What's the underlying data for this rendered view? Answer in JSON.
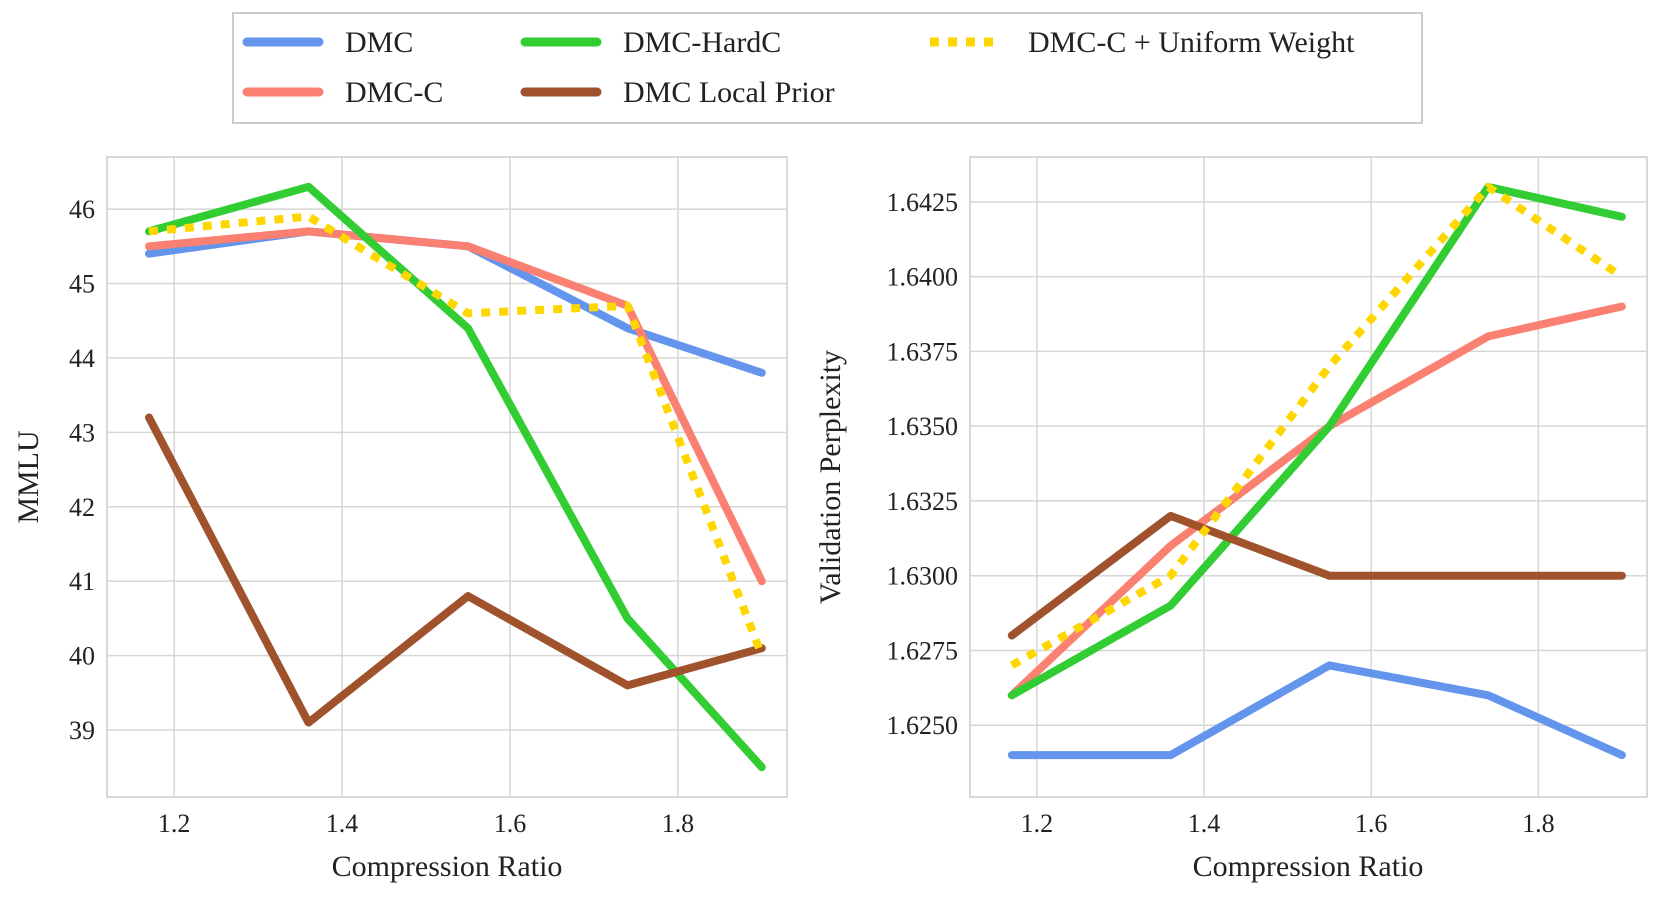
{
  "legend": {
    "placement": "top-center",
    "entries": [
      {
        "name": "DMC",
        "color": "#6495ED",
        "style": "solid"
      },
      {
        "name": "DMC-HardC",
        "color": "#32CD32",
        "style": "solid"
      },
      {
        "name": "DMC-C + Uniform Weight",
        "color": "#FFD700",
        "style": "dotted"
      },
      {
        "name": "DMC-C",
        "color": "#FA8072",
        "style": "solid"
      },
      {
        "name": "DMC Local Prior",
        "color": "#A0522D",
        "style": "solid"
      }
    ]
  },
  "chart_data": [
    {
      "type": "line",
      "xlabel": "Compression Ratio",
      "ylabel": "MMLU",
      "xlim": [
        1.12,
        1.93
      ],
      "ylim": [
        38.1,
        46.7
      ],
      "xticks": [
        "1.2",
        "1.4",
        "1.6",
        "1.8"
      ],
      "yticks": [
        "39",
        "40",
        "41",
        "42",
        "43",
        "44",
        "45",
        "46"
      ],
      "grid": true,
      "x": [
        1.17,
        1.36,
        1.55,
        1.74,
        1.9
      ],
      "series": [
        {
          "name": "DMC",
          "color": "#6495ED",
          "style": "solid",
          "values": [
            45.4,
            45.7,
            45.5,
            44.4,
            43.8
          ]
        },
        {
          "name": "DMC-C",
          "color": "#FA8072",
          "style": "solid",
          "values": [
            45.5,
            45.7,
            45.5,
            44.7,
            41.0
          ]
        },
        {
          "name": "DMC-HardC",
          "color": "#32CD32",
          "style": "solid",
          "values": [
            45.7,
            46.3,
            44.4,
            40.5,
            38.5
          ]
        },
        {
          "name": "DMC Local Prior",
          "color": "#A0522D",
          "style": "solid",
          "values": [
            43.2,
            39.1,
            40.8,
            39.6,
            40.1
          ]
        },
        {
          "name": "DMC-C + Uniform Weight",
          "color": "#FFD700",
          "style": "dotted",
          "values": [
            45.7,
            45.9,
            44.6,
            44.7,
            40.0
          ]
        }
      ]
    },
    {
      "type": "line",
      "xlabel": "Compression Ratio",
      "ylabel": "Validation Perplexity",
      "xlim": [
        1.12,
        1.93
      ],
      "ylim": [
        1.6226,
        1.644
      ],
      "xticks": [
        "1.2",
        "1.4",
        "1.6",
        "1.8"
      ],
      "yticks": [
        "1.6250",
        "1.6275",
        "1.6300",
        "1.6325",
        "1.6350",
        "1.6375",
        "1.6400",
        "1.6425"
      ],
      "grid": true,
      "x": [
        1.17,
        1.36,
        1.55,
        1.74,
        1.9
      ],
      "series": [
        {
          "name": "DMC",
          "color": "#6495ED",
          "style": "solid",
          "values": [
            1.624,
            1.624,
            1.627,
            1.626,
            1.624
          ]
        },
        {
          "name": "DMC-C",
          "color": "#FA8072",
          "style": "solid",
          "values": [
            1.626,
            1.631,
            1.635,
            1.638,
            1.639
          ]
        },
        {
          "name": "DMC-HardC",
          "color": "#32CD32",
          "style": "solid",
          "values": [
            1.626,
            1.629,
            1.635,
            1.643,
            1.642
          ]
        },
        {
          "name": "DMC Local Prior",
          "color": "#A0522D",
          "style": "solid",
          "values": [
            1.628,
            1.632,
            1.63,
            1.63,
            1.63
          ]
        },
        {
          "name": "DMC-C + Uniform Weight",
          "color": "#FFD700",
          "style": "dotted",
          "values": [
            1.627,
            1.63,
            1.637,
            1.643,
            1.64
          ]
        }
      ]
    }
  ]
}
